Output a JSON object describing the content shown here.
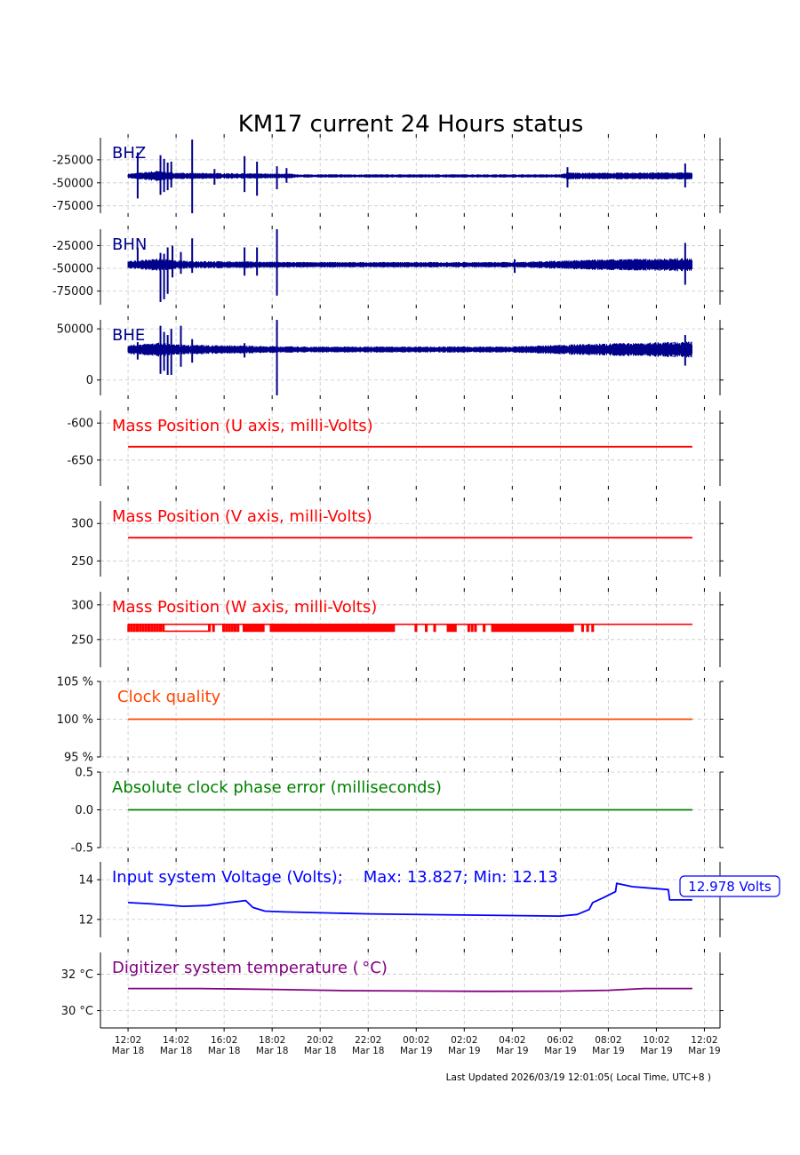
{
  "title": "KM17 current 24 Hours status",
  "footer": "Last Updated 2026/03/19 12:01:05( Local Time, UTC+8 )",
  "chart_data": {
    "type": "line",
    "x_unit": "hours since 12:02 Mar 18",
    "xlim": [
      -1.15,
      24.65
    ],
    "xticks": [
      {
        "h": 0,
        "time": "12:02",
        "date": "Mar 18"
      },
      {
        "h": 2,
        "time": "14:02",
        "date": "Mar 18"
      },
      {
        "h": 4,
        "time": "16:02",
        "date": "Mar 18"
      },
      {
        "h": 6,
        "time": "18:02",
        "date": "Mar 18"
      },
      {
        "h": 8,
        "time": "20:02",
        "date": "Mar 18"
      },
      {
        "h": 10,
        "time": "22:02",
        "date": "Mar 18"
      },
      {
        "h": 12,
        "time": "00:02",
        "date": "Mar 19"
      },
      {
        "h": 14,
        "time": "02:02",
        "date": "Mar 19"
      },
      {
        "h": 16,
        "time": "04:02",
        "date": "Mar 19"
      },
      {
        "h": 18,
        "time": "06:02",
        "date": "Mar 19"
      },
      {
        "h": 20,
        "time": "08:02",
        "date": "Mar 19"
      },
      {
        "h": 22,
        "time": "10:02",
        "date": "Mar 19"
      },
      {
        "h": 24,
        "time": "12:02",
        "date": "Mar 19"
      }
    ],
    "panels": [
      {
        "id": "bhz",
        "kind": "seismic",
        "label": "BHZ",
        "color": "#00008b",
        "ylim": [
          -83000,
          -1000
        ],
        "yticks": [
          {
            "v": -25000,
            "t": "-25000"
          },
          {
            "v": -50000,
            "t": "-50000"
          },
          {
            "v": -75000,
            "t": "-75000"
          }
        ],
        "baseline": -42500,
        "span": [
          0,
          23.5
        ],
        "noise": [
          [
            0,
            2500
          ],
          [
            1.3,
            6000
          ],
          [
            2,
            3500
          ],
          [
            6.8,
            2500
          ],
          [
            7,
            1800
          ],
          [
            18,
            1800
          ],
          [
            18.3,
            4000
          ],
          [
            19,
            3500
          ],
          [
            23.5,
            4000
          ]
        ],
        "spikes": [
          [
            0.4,
            -67000,
            -17000
          ],
          [
            1.35,
            -63000,
            -20000
          ],
          [
            1.5,
            -60000,
            -24000
          ],
          [
            1.65,
            -58000,
            -28000
          ],
          [
            1.8,
            -55000,
            -27000
          ],
          [
            2.67,
            -83000,
            -3000
          ],
          [
            3.6,
            -52000,
            -35000
          ],
          [
            4.85,
            -60000,
            -21000
          ],
          [
            5.37,
            -64000,
            -27000
          ],
          [
            6.2,
            -57000,
            -32000
          ],
          [
            6.6,
            -50000,
            -34000
          ],
          [
            18.3,
            -55000,
            -33000
          ],
          [
            23.2,
            -55000,
            -29000
          ]
        ]
      },
      {
        "id": "bhn",
        "kind": "seismic",
        "label": "BHN",
        "color": "#00008b",
        "ylim": [
          -90000,
          -7000
        ],
        "yticks": [
          {
            "v": -25000,
            "t": "-25000"
          },
          {
            "v": -50000,
            "t": "-50000"
          },
          {
            "v": -75000,
            "t": "-75000"
          }
        ],
        "baseline": -46000,
        "span": [
          0,
          23.5
        ],
        "noise": [
          [
            0,
            4000
          ],
          [
            1.3,
            7000
          ],
          [
            2,
            4500
          ],
          [
            7,
            3000
          ],
          [
            16,
            3000
          ],
          [
            19,
            5500
          ],
          [
            23.5,
            7500
          ]
        ],
        "spikes": [
          [
            0.4,
            -50000,
            -27000
          ],
          [
            1.35,
            -87000,
            -33000
          ],
          [
            1.5,
            -84000,
            -34000
          ],
          [
            1.65,
            -78000,
            -27000
          ],
          [
            1.85,
            -60000,
            -25000
          ],
          [
            2.2,
            -56000,
            -32000
          ],
          [
            2.67,
            -55000,
            -17000
          ],
          [
            4.85,
            -58000,
            -27000
          ],
          [
            5.37,
            -58000,
            -27000
          ],
          [
            6.2,
            -80000,
            -7000
          ],
          [
            16.1,
            -55000,
            -40000
          ],
          [
            23.2,
            -68000,
            -22000
          ]
        ]
      },
      {
        "id": "bhe",
        "kind": "seismic",
        "label": "BHE",
        "color": "#00008b",
        "ylim": [
          -15000,
          58800
        ],
        "yticks": [
          {
            "v": 50000,
            "t": "50000"
          },
          {
            "v": 0,
            "t": "0"
          }
        ],
        "baseline": 29800,
        "span": [
          0,
          23.5
        ],
        "noise": [
          [
            0,
            4500
          ],
          [
            1.3,
            7000
          ],
          [
            2,
            5000
          ],
          [
            7,
            3000
          ],
          [
            16,
            3000
          ],
          [
            19,
            5500
          ],
          [
            23.5,
            8000
          ]
        ],
        "spikes": [
          [
            0.4,
            20000,
            37000
          ],
          [
            1.35,
            6000,
            53000
          ],
          [
            1.5,
            9000,
            47000
          ],
          [
            1.65,
            5000,
            44000
          ],
          [
            1.8,
            5000,
            50000
          ],
          [
            2.2,
            13000,
            53000
          ],
          [
            2.67,
            17000,
            40000
          ],
          [
            4.85,
            22000,
            36000
          ],
          [
            6.2,
            -15000,
            58800
          ],
          [
            23.2,
            14000,
            44000
          ]
        ]
      },
      {
        "id": "massu",
        "kind": "line",
        "label": "Mass Position (U axis, milli-Volts)",
        "color": "#ff0000",
        "ylim": [
          -685,
          -583
        ],
        "yticks": [
          {
            "v": -600,
            "t": "-600"
          },
          {
            "v": -650,
            "t": "-650"
          }
        ],
        "points": [
          [
            0,
            -632
          ],
          [
            23.5,
            -632
          ]
        ]
      },
      {
        "id": "massv",
        "kind": "line",
        "label": "Mass Position (V axis, milli-Volts)",
        "color": "#ff0000",
        "ylim": [
          229,
          330
        ],
        "yticks": [
          {
            "v": 300,
            "t": "300"
          },
          {
            "v": 250,
            "t": "250"
          }
        ],
        "points": [
          [
            0,
            281
          ],
          [
            23.5,
            281
          ]
        ]
      },
      {
        "id": "massw",
        "kind": "step",
        "label": "Mass Position (W axis, milli-Volts)",
        "color": "#ff0000",
        "ylim": [
          210,
          319
        ],
        "yticks": [
          {
            "v": 300,
            "t": "300"
          },
          {
            "v": 250,
            "t": "250"
          }
        ],
        "high": 272,
        "low": 262,
        "span": [
          0,
          23.5
        ],
        "low_segments": [
          [
            1.5,
            3.35
          ]
        ],
        "dip_ranges": [
          [
            0,
            1.5,
            0.12
          ],
          [
            3.36,
            3.55,
            0.17
          ],
          [
            3.95,
            4.66,
            0.12
          ],
          [
            4.8,
            5.65,
            0.1
          ],
          [
            5.93,
            11.04,
            0.06
          ],
          [
            11.96,
            11.96,
            1
          ],
          [
            12.39,
            12.39,
            1
          ],
          [
            12.74,
            12.74,
            1
          ],
          [
            13.3,
            13.6,
            0.1
          ],
          [
            14.16,
            14.44,
            0.14
          ],
          [
            14.8,
            14.8,
            1
          ],
          [
            15.15,
            18.55,
            0.09
          ],
          [
            18.9,
            19.33,
            0.21
          ]
        ]
      },
      {
        "id": "clock",
        "kind": "line",
        "label": "Clock quality",
        "color": "#ff4500",
        "ylim": [
          95,
          105
        ],
        "yticks": [
          {
            "v": 105,
            "t": "105 %"
          },
          {
            "v": 100,
            "t": "100 %"
          },
          {
            "v": 95,
            "t": "95 %"
          }
        ],
        "points": [
          [
            0,
            100
          ],
          [
            23.5,
            100
          ]
        ]
      },
      {
        "id": "phase",
        "kind": "line",
        "label": "Absolute clock phase error (milliseconds)",
        "color": "#008000",
        "ylim": [
          -0.5,
          0.5
        ],
        "yticks": [
          {
            "v": 0.5,
            "t": "0.5"
          },
          {
            "v": 0,
            "t": "0.0"
          },
          {
            "v": -0.5,
            "t": "-0.5"
          }
        ],
        "points": [
          [
            0,
            0
          ],
          [
            23.5,
            0
          ]
        ]
      },
      {
        "id": "voltage",
        "kind": "line",
        "label": "Input system Voltage (Volts);    Max: 13.827; Min: 12.13",
        "color": "#0000ff",
        "ylim": [
          11.1,
          14.9
        ],
        "yticks": [
          {
            "v": 14,
            "t": "14"
          },
          {
            "v": 12,
            "t": "12"
          }
        ],
        "annotation": "12.978 Volts",
        "points": [
          [
            0,
            12.85
          ],
          [
            1,
            12.78
          ],
          [
            2.3,
            12.66
          ],
          [
            3.3,
            12.7
          ],
          [
            4.2,
            12.85
          ],
          [
            4.9,
            12.95
          ],
          [
            5.2,
            12.6
          ],
          [
            5.7,
            12.42
          ],
          [
            6.5,
            12.38
          ],
          [
            10,
            12.28
          ],
          [
            14,
            12.22
          ],
          [
            18,
            12.17
          ],
          [
            18.7,
            12.25
          ],
          [
            19.2,
            12.5
          ],
          [
            19.35,
            12.85
          ],
          [
            19.8,
            13.1
          ],
          [
            20.3,
            13.4
          ],
          [
            20.35,
            13.82
          ],
          [
            21,
            13.65
          ],
          [
            22,
            13.55
          ],
          [
            22.5,
            13.5
          ],
          [
            22.55,
            12.98
          ],
          [
            23.5,
            12.98
          ]
        ]
      },
      {
        "id": "temp",
        "kind": "line",
        "label": "Digitizer system temperature ($^\\circ$C)",
        "display_label": "Digitizer system temperature ( °C)",
        "color": "#800080",
        "ylim": [
          29.05,
          33.2
        ],
        "yticks": [
          {
            "v": 32,
            "t": "32 °C"
          },
          {
            "v": 30,
            "t": "30 °C"
          }
        ],
        "points": [
          [
            0,
            31.22
          ],
          [
            3,
            31.22
          ],
          [
            6,
            31.17
          ],
          [
            9,
            31.1
          ],
          [
            12,
            31.08
          ],
          [
            15,
            31.06
          ],
          [
            18,
            31.07
          ],
          [
            20,
            31.12
          ],
          [
            21.5,
            31.22
          ],
          [
            23.5,
            31.22
          ]
        ]
      }
    ]
  }
}
